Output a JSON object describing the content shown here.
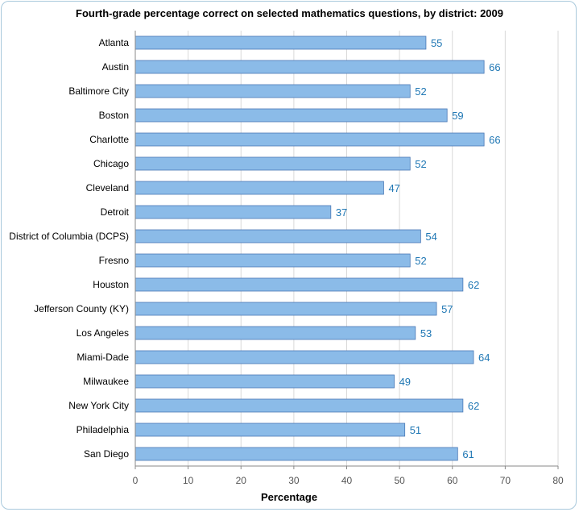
{
  "chart_data": {
    "type": "bar",
    "orientation": "horizontal",
    "title": "Fourth-grade percentage correct on selected mathematics questions, by district: 2009",
    "xlabel": "Percentage",
    "ylabel": "",
    "xlim": [
      0,
      80
    ],
    "x_ticks": [
      0,
      10,
      20,
      30,
      40,
      50,
      60,
      70,
      80
    ],
    "grid": true,
    "bar_color": "#8bbbe8",
    "bar_edge_color": "#4a78b5",
    "label_color": "#1f77b4",
    "categories": [
      "Atlanta",
      "Austin",
      "Baltimore City",
      "Boston",
      "Charlotte",
      "Chicago",
      "Cleveland",
      "Detroit",
      "District of Columbia (DCPS)",
      "Fresno",
      "Houston",
      "Jefferson County (KY)",
      "Los Angeles",
      "Miami-Dade",
      "Milwaukee",
      "New York City",
      "Philadelphia",
      "San Diego"
    ],
    "values": [
      55,
      66,
      52,
      59,
      66,
      52,
      47,
      37,
      54,
      52,
      62,
      57,
      53,
      64,
      49,
      62,
      51,
      61
    ]
  }
}
